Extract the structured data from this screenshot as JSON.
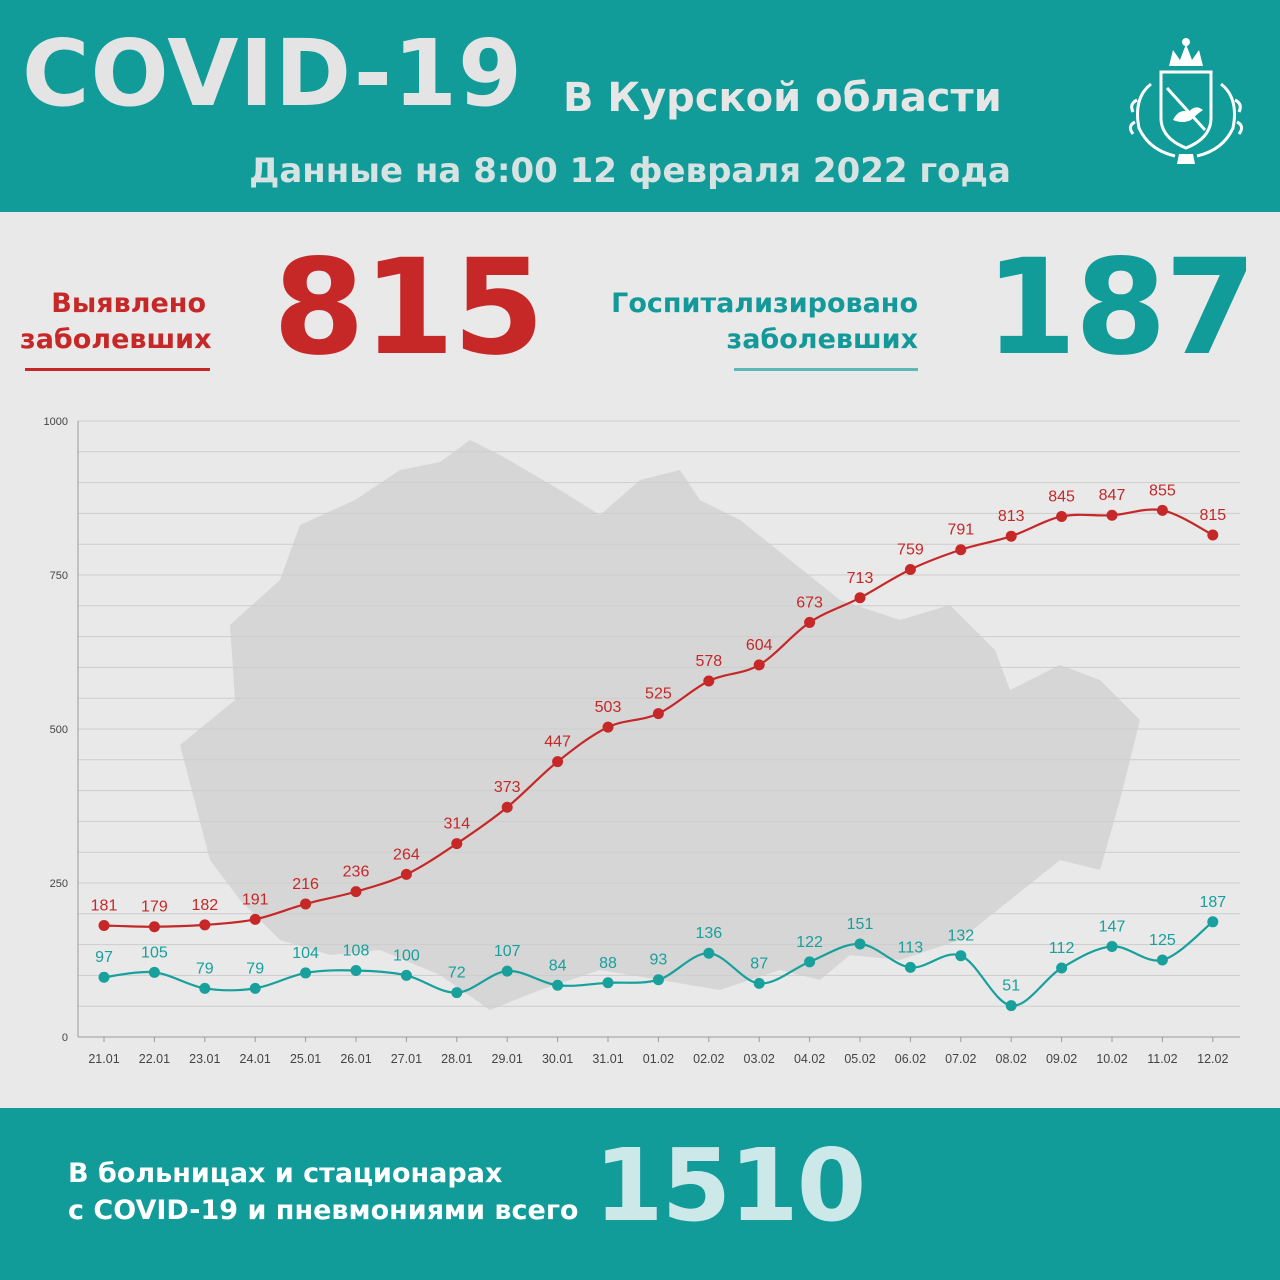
{
  "header": {
    "title": "COVID-19",
    "region": "В Курской области",
    "date": "Данные на 8:00 12 февраля 2022 года"
  },
  "stats": {
    "detected": {
      "label_line1": "Выявлено",
      "label_line2": "заболевших",
      "value": "815"
    },
    "hospitalized": {
      "label_line1": "Госпитализировано",
      "label_line2": "заболевших",
      "value": "187"
    }
  },
  "colors": {
    "brand": "#119b99",
    "detected": "#c62828",
    "hospitalized": "#17a09c"
  },
  "chart_data": {
    "type": "line",
    "ylim": [
      0,
      1000
    ],
    "yticks": [
      0,
      250,
      500,
      750,
      1000
    ],
    "grid": true,
    "x": [
      "21.01",
      "22.01",
      "23.01",
      "24.01",
      "25.01",
      "26.01",
      "27.01",
      "28.01",
      "29.01",
      "30.01",
      "31.01",
      "01.02",
      "02.02",
      "03.02",
      "04.02",
      "05.02",
      "06.02",
      "07.02",
      "08.02",
      "09.02",
      "10.02",
      "11.02",
      "12.02"
    ],
    "series": [
      {
        "color": "#c62828",
        "values": [
          181,
          179,
          182,
          191,
          216,
          236,
          264,
          314,
          373,
          447,
          503,
          525,
          578,
          604,
          673,
          713,
          759,
          791,
          813,
          845,
          847,
          855,
          815
        ]
      },
      {
        "color": "#17a09c",
        "values": [
          97,
          105,
          79,
          79,
          104,
          108,
          100,
          72,
          107,
          84,
          88,
          93,
          136,
          87,
          122,
          151,
          113,
          132,
          51,
          112,
          147,
          125,
          187
        ]
      }
    ]
  },
  "footer": {
    "line1": "В больницах и стационарах",
    "line2": "с COVID-19 и пневмониями всего",
    "value": "1510"
  }
}
